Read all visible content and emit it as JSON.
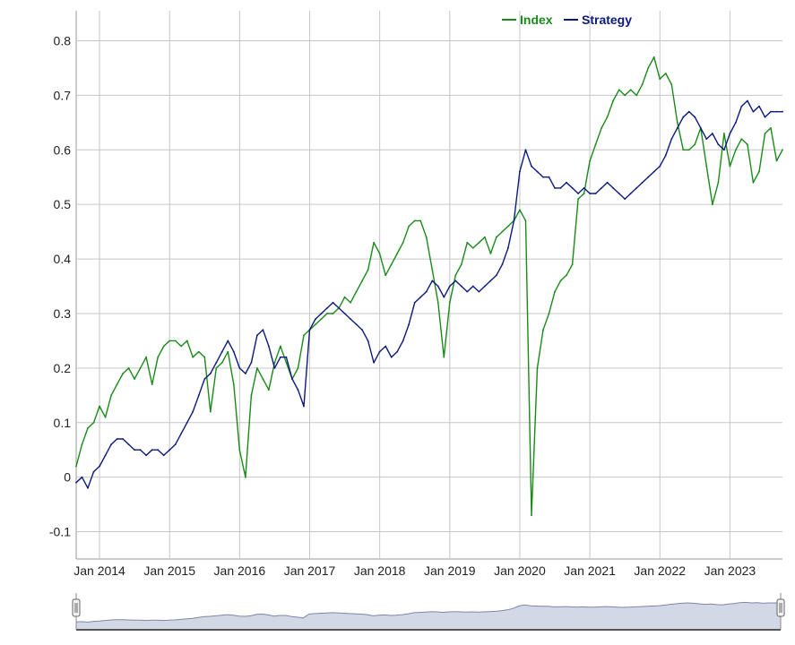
{
  "chart_data": {
    "type": "line",
    "legend": {
      "placement": "top-right",
      "entries": [
        {
          "label": "Index",
          "color": "#1a8a1a"
        },
        {
          "label": "Strategy",
          "color": "#0b1a7a"
        }
      ]
    },
    "xlabel": "",
    "ylabel": "",
    "x_ticks": [
      "Jan 2014",
      "Jan 2015",
      "Jan 2016",
      "Jan 2017",
      "Jan 2018",
      "Jan 2019",
      "Jan 2020",
      "Jan 2021",
      "Jan 2022",
      "Jan 2023"
    ],
    "y_ticks": [
      "0.8",
      "0.7",
      "0.6",
      "0.5",
      "0.4",
      "0.3",
      "0.2",
      "0.1",
      "0",
      "-0.1"
    ],
    "ylim": [
      -0.15,
      0.855
    ],
    "xlim": [
      "2013-09",
      "2023-10"
    ],
    "grid": true,
    "navigator": {
      "fill": "#d3d8e6",
      "line": "#7c88a8",
      "handles": "left-right"
    },
    "series": [
      {
        "name": "Index",
        "color": "#1a8a1a",
        "x": [
          "2013-09",
          "2013-10",
          "2013-11",
          "2013-12",
          "2014-01",
          "2014-02",
          "2014-03",
          "2014-04",
          "2014-05",
          "2014-06",
          "2014-07",
          "2014-08",
          "2014-09",
          "2014-10",
          "2014-11",
          "2014-12",
          "2015-01",
          "2015-02",
          "2015-03",
          "2015-04",
          "2015-05",
          "2015-06",
          "2015-07",
          "2015-08",
          "2015-09",
          "2015-10",
          "2015-11",
          "2015-12",
          "2016-01",
          "2016-02",
          "2016-03",
          "2016-04",
          "2016-05",
          "2016-06",
          "2016-07",
          "2016-08",
          "2016-09",
          "2016-10",
          "2016-11",
          "2016-12",
          "2017-01",
          "2017-02",
          "2017-03",
          "2017-04",
          "2017-05",
          "2017-06",
          "2017-07",
          "2017-08",
          "2017-09",
          "2017-10",
          "2017-11",
          "2017-12",
          "2018-01",
          "2018-02",
          "2018-03",
          "2018-04",
          "2018-05",
          "2018-06",
          "2018-07",
          "2018-08",
          "2018-09",
          "2018-10",
          "2018-11",
          "2018-12",
          "2019-01",
          "2019-02",
          "2019-03",
          "2019-04",
          "2019-05",
          "2019-06",
          "2019-07",
          "2019-08",
          "2019-09",
          "2019-10",
          "2019-11",
          "2019-12",
          "2020-01",
          "2020-02",
          "2020-03",
          "2020-04",
          "2020-05",
          "2020-06",
          "2020-07",
          "2020-08",
          "2020-09",
          "2020-10",
          "2020-11",
          "2020-12",
          "2021-01",
          "2021-02",
          "2021-03",
          "2021-04",
          "2021-05",
          "2021-06",
          "2021-07",
          "2021-08",
          "2021-09",
          "2021-10",
          "2021-11",
          "2021-12",
          "2022-01",
          "2022-02",
          "2022-03",
          "2022-04",
          "2022-05",
          "2022-06",
          "2022-07",
          "2022-08",
          "2022-09",
          "2022-10",
          "2022-11",
          "2022-12",
          "2023-01",
          "2023-02",
          "2023-03",
          "2023-04",
          "2023-05",
          "2023-06",
          "2023-07",
          "2023-08",
          "2023-09",
          "2023-10"
        ],
        "values": [
          0.02,
          0.06,
          0.09,
          0.1,
          0.13,
          0.11,
          0.15,
          0.17,
          0.19,
          0.2,
          0.18,
          0.2,
          0.22,
          0.17,
          0.22,
          0.24,
          0.25,
          0.25,
          0.24,
          0.25,
          0.22,
          0.23,
          0.22,
          0.12,
          0.2,
          0.21,
          0.23,
          0.17,
          0.05,
          0.0,
          0.15,
          0.2,
          0.18,
          0.16,
          0.21,
          0.24,
          0.21,
          0.18,
          0.2,
          0.26,
          0.27,
          0.28,
          0.29,
          0.3,
          0.3,
          0.31,
          0.33,
          0.32,
          0.34,
          0.36,
          0.38,
          0.43,
          0.41,
          0.37,
          0.39,
          0.41,
          0.43,
          0.46,
          0.47,
          0.47,
          0.44,
          0.38,
          0.32,
          0.22,
          0.32,
          0.37,
          0.39,
          0.43,
          0.42,
          0.43,
          0.44,
          0.41,
          0.44,
          0.45,
          0.46,
          0.47,
          0.49,
          0.47,
          -0.07,
          0.2,
          0.27,
          0.3,
          0.34,
          0.36,
          0.37,
          0.39,
          0.51,
          0.52,
          0.58,
          0.61,
          0.64,
          0.66,
          0.69,
          0.71,
          0.7,
          0.71,
          0.7,
          0.72,
          0.75,
          0.77,
          0.73,
          0.74,
          0.72,
          0.65,
          0.6,
          0.6,
          0.61,
          0.64,
          0.57,
          0.5,
          0.54,
          0.63,
          0.57,
          0.6,
          0.62,
          0.61,
          0.54,
          0.56,
          0.63,
          0.64,
          0.58,
          0.6
        ]
      },
      {
        "name": "Strategy",
        "color": "#0b1a7a",
        "x": [
          "2013-09",
          "2013-10",
          "2013-11",
          "2013-12",
          "2014-01",
          "2014-02",
          "2014-03",
          "2014-04",
          "2014-05",
          "2014-06",
          "2014-07",
          "2014-08",
          "2014-09",
          "2014-10",
          "2014-11",
          "2014-12",
          "2015-01",
          "2015-02",
          "2015-03",
          "2015-04",
          "2015-05",
          "2015-06",
          "2015-07",
          "2015-08",
          "2015-09",
          "2015-10",
          "2015-11",
          "2015-12",
          "2016-01",
          "2016-02",
          "2016-03",
          "2016-04",
          "2016-05",
          "2016-06",
          "2016-07",
          "2016-08",
          "2016-09",
          "2016-10",
          "2016-11",
          "2016-12",
          "2017-01",
          "2017-02",
          "2017-03",
          "2017-04",
          "2017-05",
          "2017-06",
          "2017-07",
          "2017-08",
          "2017-09",
          "2017-10",
          "2017-11",
          "2017-12",
          "2018-01",
          "2018-02",
          "2018-03",
          "2018-04",
          "2018-05",
          "2018-06",
          "2018-07",
          "2018-08",
          "2018-09",
          "2018-10",
          "2018-11",
          "2018-12",
          "2019-01",
          "2019-02",
          "2019-03",
          "2019-04",
          "2019-05",
          "2019-06",
          "2019-07",
          "2019-08",
          "2019-09",
          "2019-10",
          "2019-11",
          "2019-12",
          "2020-01",
          "2020-02",
          "2020-03",
          "2020-04",
          "2020-05",
          "2020-06",
          "2020-07",
          "2020-08",
          "2020-09",
          "2020-10",
          "2020-11",
          "2020-12",
          "2021-01",
          "2021-02",
          "2021-03",
          "2021-04",
          "2021-05",
          "2021-06",
          "2021-07",
          "2021-08",
          "2021-09",
          "2021-10",
          "2021-11",
          "2021-12",
          "2022-01",
          "2022-02",
          "2022-03",
          "2022-04",
          "2022-05",
          "2022-06",
          "2022-07",
          "2022-08",
          "2022-09",
          "2022-10",
          "2022-11",
          "2022-12",
          "2023-01",
          "2023-02",
          "2023-03",
          "2023-04",
          "2023-05",
          "2023-06",
          "2023-07",
          "2023-08",
          "2023-09",
          "2023-10"
        ],
        "values": [
          -0.01,
          0.0,
          -0.02,
          0.01,
          0.02,
          0.04,
          0.06,
          0.07,
          0.07,
          0.06,
          0.05,
          0.05,
          0.04,
          0.05,
          0.05,
          0.04,
          0.05,
          0.06,
          0.08,
          0.1,
          0.12,
          0.15,
          0.18,
          0.19,
          0.21,
          0.23,
          0.25,
          0.23,
          0.2,
          0.19,
          0.21,
          0.26,
          0.27,
          0.24,
          0.2,
          0.22,
          0.22,
          0.18,
          0.16,
          0.13,
          0.27,
          0.29,
          0.3,
          0.31,
          0.32,
          0.31,
          0.3,
          0.29,
          0.28,
          0.27,
          0.25,
          0.21,
          0.23,
          0.24,
          0.22,
          0.23,
          0.25,
          0.28,
          0.32,
          0.33,
          0.34,
          0.36,
          0.35,
          0.33,
          0.35,
          0.36,
          0.35,
          0.34,
          0.35,
          0.34,
          0.35,
          0.36,
          0.37,
          0.39,
          0.42,
          0.47,
          0.56,
          0.6,
          0.57,
          0.56,
          0.55,
          0.55,
          0.53,
          0.53,
          0.54,
          0.53,
          0.52,
          0.53,
          0.52,
          0.52,
          0.53,
          0.54,
          0.53,
          0.52,
          0.51,
          0.52,
          0.53,
          0.54,
          0.55,
          0.56,
          0.57,
          0.59,
          0.62,
          0.64,
          0.66,
          0.67,
          0.66,
          0.64,
          0.62,
          0.63,
          0.61,
          0.6,
          0.63,
          0.65,
          0.68,
          0.69,
          0.67,
          0.68,
          0.66,
          0.67,
          0.67,
          0.67
        ]
      }
    ]
  }
}
